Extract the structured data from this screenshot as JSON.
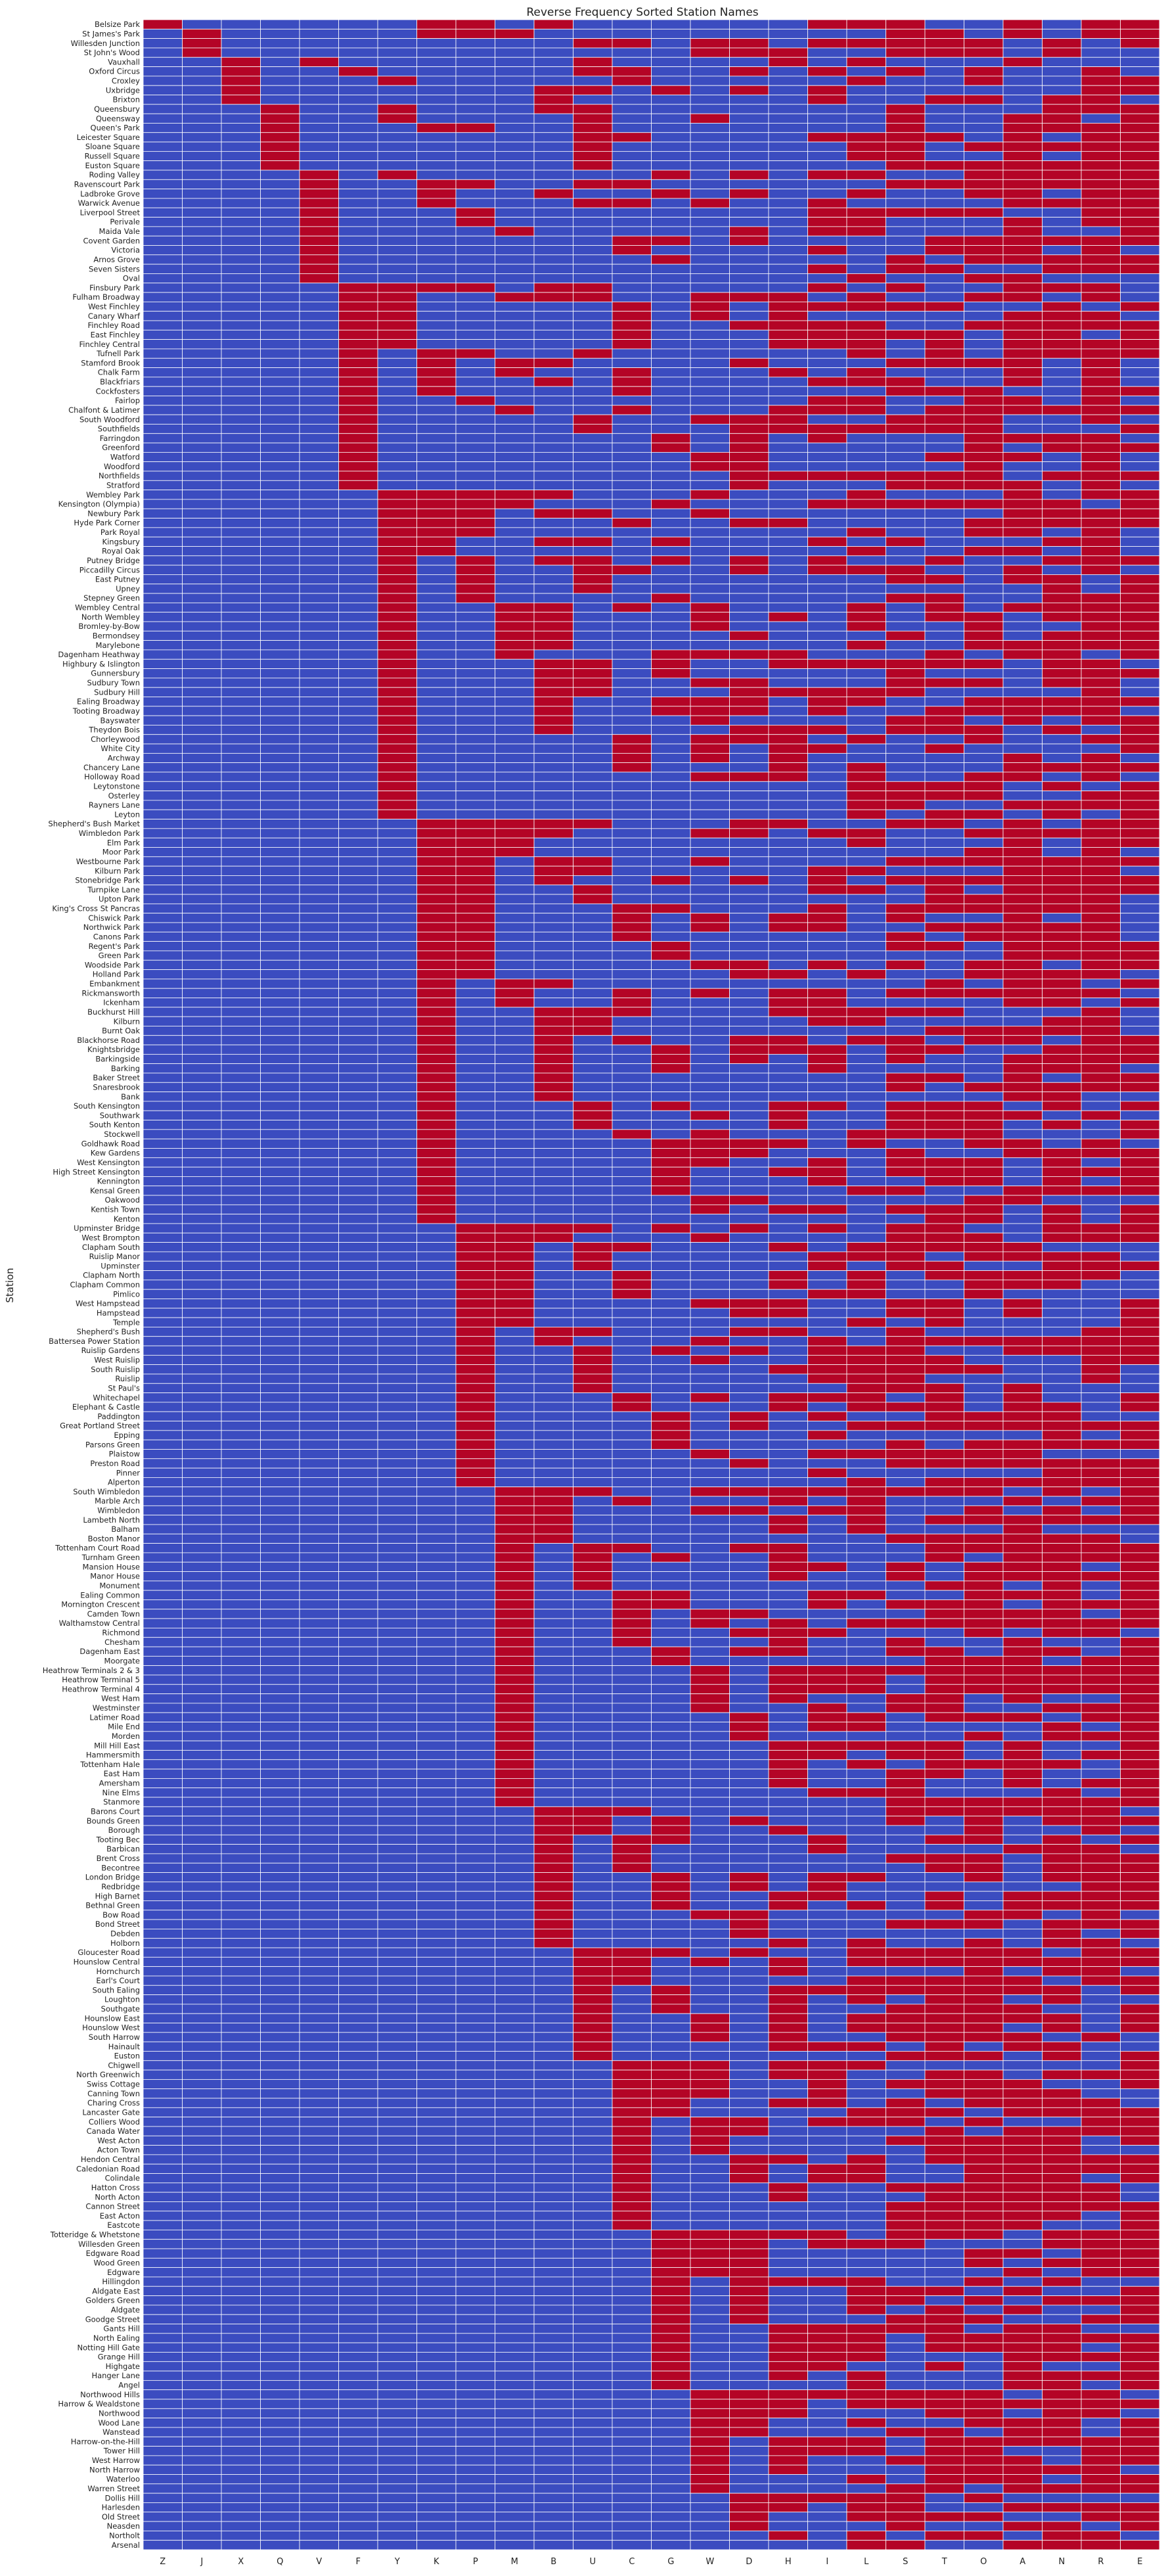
{
  "chart_data": {
    "type": "heatmap",
    "title": "Reverse Frequency Sorted Station Names",
    "ylabel": "Station",
    "xlabel": "",
    "legend": "none",
    "colors": {
      "present": "#b40426",
      "absent": "#3b4cc0",
      "gridline": "#ffffff"
    },
    "columns": [
      "Z",
      "J",
      "X",
      "Q",
      "V",
      "F",
      "Y",
      "K",
      "P",
      "M",
      "B",
      "U",
      "C",
      "G",
      "W",
      "D",
      "H",
      "I",
      "L",
      "S",
      "T",
      "O",
      "A",
      "N",
      "R",
      "E"
    ],
    "rows": [
      "Belsize Park",
      "St James's Park",
      "Willesden Junction",
      "St John's Wood",
      "Vauxhall",
      "Oxford Circus",
      "Croxley",
      "Uxbridge",
      "Brixton",
      "Queensbury",
      "Queensway",
      "Queen's Park",
      "Leicester Square",
      "Sloane Square",
      "Russell Square",
      "Euston Square",
      "Roding Valley",
      "Ravenscourt Park",
      "Ladbroke Grove",
      "Warwick Avenue",
      "Liverpool Street",
      "Perivale",
      "Maida Vale",
      "Covent Garden",
      "Victoria",
      "Arnos Grove",
      "Seven Sisters",
      "Oval",
      "Finsbury Park",
      "Fulham Broadway",
      "West Finchley",
      "Canary Wharf",
      "Finchley Road",
      "East Finchley",
      "Finchley Central",
      "Tufnell Park",
      "Stamford Brook",
      "Chalk Farm",
      "Blackfriars",
      "Cockfosters",
      "Fairlop",
      "Chalfont & Latimer",
      "South Woodford",
      "Southfields",
      "Farringdon",
      "Greenford",
      "Watford",
      "Woodford",
      "Northfields",
      "Stratford",
      "Wembley Park",
      "Kensington (Olympia)",
      "Newbury Park",
      "Hyde Park Corner",
      "Park Royal",
      "Kingsbury",
      "Royal Oak",
      "Putney Bridge",
      "Piccadilly Circus",
      "East Putney",
      "Upney",
      "Stepney Green",
      "Wembley Central",
      "North Wembley",
      "Bromley-by-Bow",
      "Bermondsey",
      "Marylebone",
      "Dagenham Heathway",
      "Highbury & Islington",
      "Gunnersbury",
      "Sudbury Town",
      "Sudbury Hill",
      "Ealing Broadway",
      "Tooting Broadway",
      "Bayswater",
      "Theydon Bois",
      "Chorleywood",
      "White City",
      "Archway",
      "Chancery Lane",
      "Holloway Road",
      "Leytonstone",
      "Osterley",
      "Rayners Lane",
      "Leyton",
      "Shepherd's Bush Market",
      "Wimbledon Park",
      "Elm Park",
      "Moor Park",
      "Westbourne Park",
      "Kilburn Park",
      "Stonebridge Park",
      "Turnpike Lane",
      "Upton Park",
      "King's Cross St Pancras",
      "Chiswick Park",
      "Northwick Park",
      "Canons Park",
      "Regent's Park",
      "Green Park",
      "Woodside Park",
      "Holland Park",
      "Embankment",
      "Rickmansworth",
      "Ickenham",
      "Buckhurst Hill",
      "Kilburn",
      "Burnt Oak",
      "Blackhorse Road",
      "Knightsbridge",
      "Barkingside",
      "Barking",
      "Baker Street",
      "Snaresbrook",
      "Bank",
      "South Kensington",
      "Southwark",
      "South Kenton",
      "Stockwell",
      "Goldhawk Road",
      "Kew Gardens",
      "West Kensington",
      "High Street Kensington",
      "Kennington",
      "Kensal Green",
      "Oakwood",
      "Kentish Town",
      "Kenton",
      "Upminster Bridge",
      "West Brompton",
      "Clapham South",
      "Ruislip Manor",
      "Upminster",
      "Clapham North",
      "Clapham Common",
      "Pimlico",
      "West Hampstead",
      "Hampstead",
      "Temple",
      "Shepherd's Bush",
      "Battersea Power Station",
      "Ruislip Gardens",
      "West Ruislip",
      "South Ruislip",
      "Ruislip",
      "St Paul's",
      "Whitechapel",
      "Elephant & Castle",
      "Paddington",
      "Great Portland Street",
      "Epping",
      "Parsons Green",
      "Plaistow",
      "Preston Road",
      "Pinner",
      "Alperton",
      "South Wimbledon",
      "Marble Arch",
      "Wimbledon",
      "Lambeth North",
      "Balham",
      "Boston Manor",
      "Tottenham Court Road",
      "Turnham Green",
      "Mansion House",
      "Manor House",
      "Monument",
      "Ealing Common",
      "Mornington Crescent",
      "Camden Town",
      "Walthamstow Central",
      "Richmond",
      "Chesham",
      "Dagenham East",
      "Moorgate",
      "Heathrow Terminals 2 & 3",
      "Heathrow Terminal 5",
      "Heathrow Terminal 4",
      "West Ham",
      "Westminster",
      "Latimer Road",
      "Mile End",
      "Morden",
      "Mill Hill East",
      "Hammersmith",
      "Tottenham Hale",
      "East Ham",
      "Amersham",
      "Nine Elms",
      "Stanmore",
      "Barons Court",
      "Bounds Green",
      "Borough",
      "Tooting Bec",
      "Barbican",
      "Brent Cross",
      "Becontree",
      "London Bridge",
      "Redbridge",
      "High Barnet",
      "Bethnal Green",
      "Bow Road",
      "Bond Street",
      "Debden",
      "Holborn",
      "Gloucester Road",
      "Hounslow Central",
      "Hornchurch",
      "Earl's Court",
      "South Ealing",
      "Loughton",
      "Southgate",
      "Hounslow East",
      "Hounslow West",
      "South Harrow",
      "Hainault",
      "Euston",
      "Chigwell",
      "North Greenwich",
      "Swiss Cottage",
      "Canning Town",
      "Charing Cross",
      "Lancaster Gate",
      "Colliers Wood",
      "Canada Water",
      "West Acton",
      "Acton Town",
      "Hendon Central",
      "Caledonian Road",
      "Colindale",
      "Hatton Cross",
      "North Acton",
      "Cannon Street",
      "East Acton",
      "Eastcote",
      "Totteridge & Whetstone",
      "Willesden Green",
      "Edgware Road",
      "Wood Green",
      "Edgware",
      "Hillingdon",
      "Aldgate East",
      "Golders Green",
      "Aldgate",
      "Goodge Street",
      "Gants Hill",
      "North Ealing",
      "Notting Hill Gate",
      "Grange Hill",
      "Highgate",
      "Hanger Lane",
      "Angel",
      "Northwood Hills",
      "Harrow & Wealdstone",
      "Northwood",
      "Wood Lane",
      "Wanstead",
      "Harrow-on-the-Hill",
      "Tower Hill",
      "West Harrow",
      "North Harrow",
      "Waterloo",
      "Warren Street",
      "Dollis Hill",
      "Harlesden",
      "Old Street",
      "Neasden",
      "Northolt",
      "Arsenal"
    ]
  }
}
